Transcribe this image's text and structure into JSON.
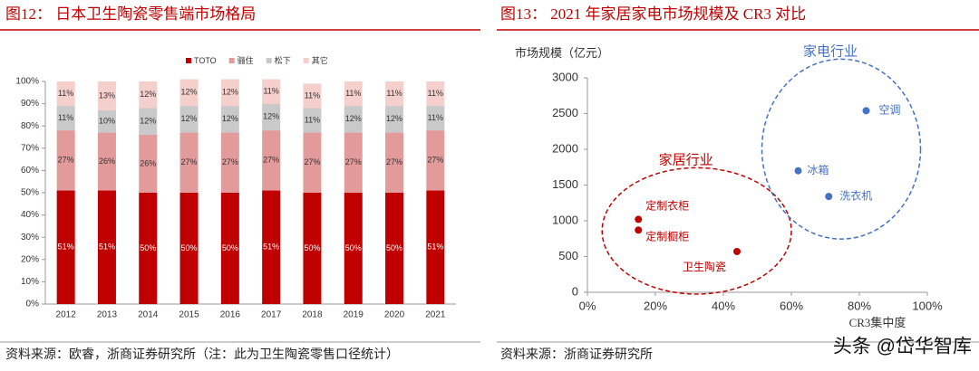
{
  "chart_data": [
    {
      "type": "stacked-bar",
      "title": "图12：  日本卫生陶瓷零售端市场格局",
      "source": "资料来源：欧睿，浙商证券研究所（注：此为卫生陶瓷零售口径统计）",
      "categories": [
        "2012",
        "2013",
        "2014",
        "2015",
        "2016",
        "2017",
        "2018",
        "2019",
        "2020",
        "2021"
      ],
      "series": [
        {
          "name": "TOTO",
          "color": "#c00000",
          "label_color": "#ffffff",
          "values": [
            51,
            51,
            50,
            50,
            50,
            51,
            50,
            50,
            50,
            51
          ],
          "value_labels": [
            "51%",
            "51%",
            "50%",
            "50%",
            "50%",
            "51%",
            "50%",
            "50%",
            "50%",
            "51%"
          ]
        },
        {
          "name": "骊住",
          "color": "#e39a9a",
          "label_color": "#333333",
          "values": [
            27,
            26,
            26,
            27,
            27,
            27,
            27,
            27,
            27,
            27
          ],
          "value_labels": [
            "27%",
            "26%",
            "26%",
            "27%",
            "27%",
            "27%",
            "27%",
            "27%",
            "27%",
            "27%"
          ]
        },
        {
          "name": "松下",
          "color": "#c9c9c9",
          "label_color": "#333333",
          "values": [
            11,
            10,
            12,
            12,
            12,
            12,
            11,
            12,
            12,
            11
          ],
          "value_labels": [
            "11%",
            "10%",
            "12%",
            "12%",
            "12%",
            "12%",
            "11%",
            "12%",
            "12%",
            "11%"
          ]
        },
        {
          "name": "其它",
          "color": "#f5cfcb",
          "label_color": "#333333",
          "values": [
            11,
            13,
            12,
            12,
            12,
            11,
            11,
            11,
            11,
            11
          ],
          "value_labels": [
            "11%",
            "13%",
            "12%",
            "12%",
            "12%",
            "11%",
            "11%",
            "11%",
            "11%",
            "11%"
          ]
        }
      ],
      "ylim": [
        0,
        100
      ],
      "yticks": [
        {
          "value": 0,
          "label": "0%"
        },
        {
          "value": 10,
          "label": "10%"
        },
        {
          "value": 20,
          "label": "20%"
        },
        {
          "value": 30,
          "label": "30%"
        },
        {
          "value": 40,
          "label": "40%"
        },
        {
          "value": 50,
          "label": "50%"
        },
        {
          "value": 60,
          "label": "60%"
        },
        {
          "value": 70,
          "label": "70%"
        },
        {
          "value": 80,
          "label": "80%"
        },
        {
          "value": 90,
          "label": "90%"
        },
        {
          "value": 100,
          "label": "100%"
        }
      ],
      "legend": "top"
    },
    {
      "type": "scatter",
      "title": "图13：  2021 年家居家电市场规模及 CR3 对比",
      "source": "资料来源：浙商证券研究所",
      "y_label": "市场规模（亿元）",
      "x_label": "CR3集中度",
      "series": [
        {
          "name": "家居行业",
          "color": "#c00000",
          "x": [
            15,
            15,
            44
          ],
          "values": [
            1020,
            870,
            570
          ],
          "labels": [
            "定制衣柜",
            "定制橱柜",
            "卫生陶瓷"
          ]
        },
        {
          "name": "家电行业",
          "color": "#4472c4",
          "x": [
            82,
            62,
            71
          ],
          "values": [
            2540,
            1700,
            1340
          ],
          "labels": [
            "空调",
            "冰箱",
            "洗衣机"
          ]
        }
      ],
      "xlim": [
        0,
        100
      ],
      "xticks": [
        {
          "value": 0,
          "label": "0%"
        },
        {
          "value": 20,
          "label": "20%"
        },
        {
          "value": 40,
          "label": "40%"
        },
        {
          "value": 60,
          "label": "60%"
        },
        {
          "value": 80,
          "label": "80%"
        },
        {
          "value": 100,
          "label": "100%"
        }
      ],
      "ylim": [
        0,
        3000
      ],
      "yticks": [
        0,
        500,
        1000,
        1500,
        2000,
        2500,
        3000
      ]
    }
  ],
  "watermark": "头条 @岱华智库"
}
